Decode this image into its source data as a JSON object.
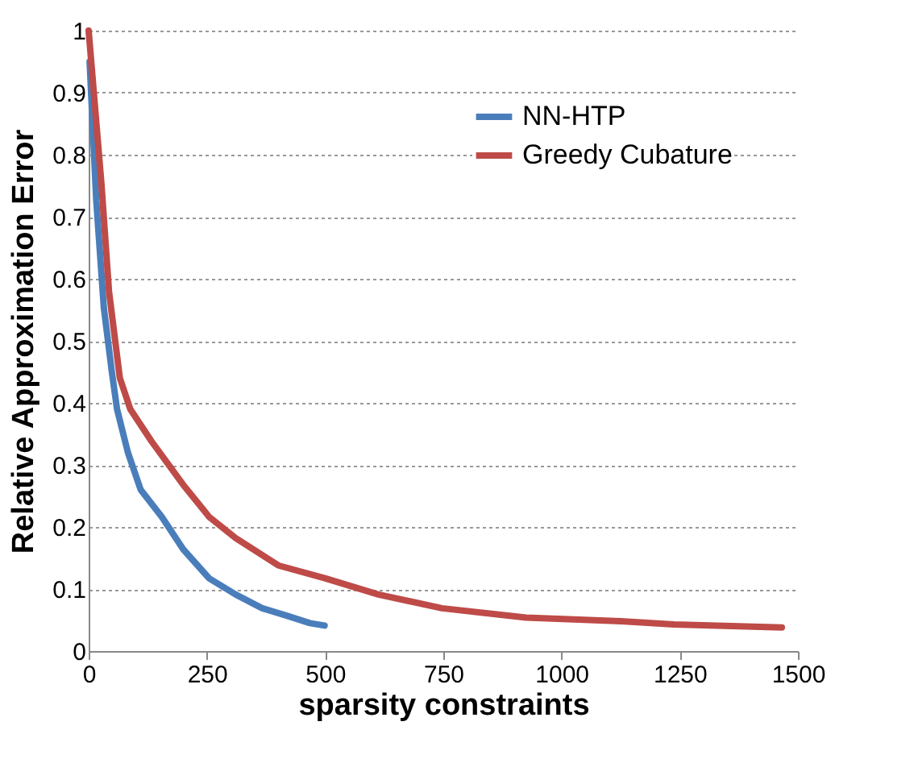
{
  "chart_data": {
    "type": "line",
    "xlabel": "sparsity constraints",
    "ylabel": "Relative Approximation Error",
    "xlim": [
      0,
      1500
    ],
    "xticks": [
      0,
      250,
      500,
      750,
      1000,
      1250,
      1500
    ],
    "ylim": [
      0,
      1
    ],
    "yticks": [
      0,
      0.1,
      0.2,
      0.3,
      0.4,
      0.5,
      0.6,
      0.7,
      0.8,
      0.9,
      1
    ],
    "grid": "y",
    "legend": "top right",
    "marker": "none",
    "line_style": "solid",
    "series": [
      {
        "name": "NN-HTP",
        "color": "#4a7ebb",
        "x": [
          2,
          16,
          32,
          49,
          60,
          83,
          110,
          155,
          200,
          255,
          311,
          367,
          423,
          468,
          499
        ],
        "values": [
          0.95,
          0.727,
          0.554,
          0.45,
          0.39,
          0.32,
          0.26,
          0.216,
          0.164,
          0.117,
          0.091,
          0.069,
          0.056,
          0.045,
          0.041
        ]
      },
      {
        "name": "Greedy Cubature",
        "color": "#be4b48",
        "x": [
          0,
          27,
          43,
          66,
          88,
          133,
          200,
          255,
          311,
          401,
          501,
          557,
          613,
          747,
          925,
          1126,
          1238,
          1466
        ],
        "values": [
          1.0,
          0.753,
          0.58,
          0.44,
          0.39,
          0.338,
          0.268,
          0.216,
          0.182,
          0.138,
          0.117,
          0.104,
          0.091,
          0.069,
          0.054,
          0.048,
          0.043,
          0.038
        ]
      }
    ]
  }
}
